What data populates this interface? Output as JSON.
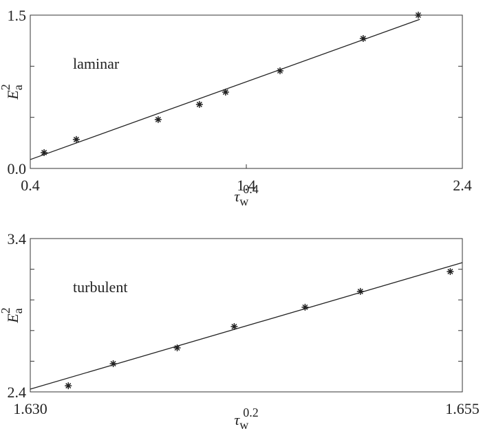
{
  "chart_data": [
    {
      "type": "scatter",
      "annotation": "laminar",
      "xlabel": {
        "base": "τ",
        "sub": "w",
        "sup": "0.4"
      },
      "ylabel": {
        "base": "E",
        "sub": "a",
        "sup": "2"
      },
      "x": [
        0.464,
        0.613,
        0.992,
        1.183,
        1.304,
        1.556,
        1.941,
        2.196
      ],
      "y": [
        0.155,
        0.283,
        0.478,
        0.626,
        0.747,
        0.955,
        1.271,
        1.5
      ],
      "fit": {
        "x": [
          0.4,
          2.203
        ],
        "y": [
          0.087,
          1.459
        ]
      },
      "xlim": [
        0.4,
        2.4
      ],
      "ylim": [
        0,
        1.5
      ],
      "xticks": [
        0.4,
        1.4,
        2.4
      ],
      "yticks": [
        {
          "value": 0,
          "label": "0.0"
        },
        1.5
      ],
      "yminor_ticks": [
        0.5,
        1.0
      ],
      "color": "#222222"
    },
    {
      "type": "scatter",
      "annotation": "turbulent",
      "xlabel": {
        "base": "τ",
        "sub": "w",
        "sup": "0.2"
      },
      "ylabel": {
        "base": "E",
        "sub": "a",
        "sup": "2"
      },
      "x": [
        1.6322,
        1.6348,
        1.6385,
        1.6418,
        1.6459,
        1.6491,
        1.6543
      ],
      "y": [
        2.44,
        2.584,
        2.687,
        2.826,
        2.952,
        3.055,
        3.185
      ],
      "fit": {
        "x": [
          1.63,
          1.655
        ],
        "y": [
          2.418,
          3.243
        ]
      },
      "xlim": [
        1.63,
        1.655
      ],
      "ylim": [
        2.4,
        3.4
      ],
      "xticks": [
        {
          "value": 1.63,
          "label": "1.630"
        },
        1.655
      ],
      "yticks": [
        2.4,
        3.4
      ],
      "yminor_ticks": [
        2.6,
        2.8,
        3.0,
        3.2
      ],
      "color": "#222222"
    }
  ]
}
